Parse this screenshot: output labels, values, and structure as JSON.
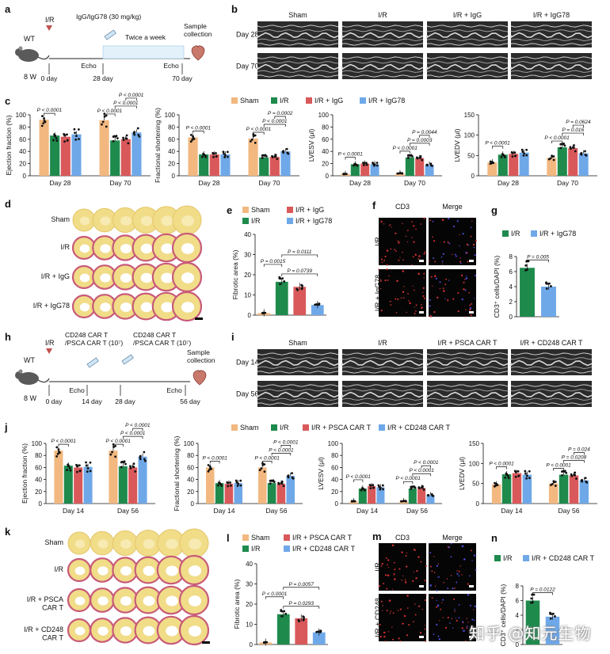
{
  "panels": {
    "a": {
      "label": "a",
      "wt": "WT",
      "age": "8 W",
      "ir": "I/R",
      "drug": "IgG/IgG78 (30 mg/kg)",
      "freq": "Twice a week",
      "sample": "Sample\ncollection",
      "echo": "Echo",
      "days": [
        "0 day",
        "28 day",
        "70 day"
      ]
    },
    "b": {
      "label": "b",
      "cols": [
        "Sham",
        "I/R",
        "I/R + IgG",
        "I/R + IgG78"
      ],
      "rows": [
        "Day 28",
        "Day 70"
      ]
    },
    "c": {
      "label": "c"
    },
    "d": {
      "label": "d",
      "rows": [
        "Sham",
        "I/R",
        "I/R + IgG",
        "I/R + IgG78"
      ]
    },
    "e": {
      "label": "e"
    },
    "f": {
      "label": "f",
      "cols": [
        "CD3",
        "Merge"
      ],
      "rows": [
        "I/R",
        "I/R + IgG78"
      ]
    },
    "g": {
      "label": "g"
    },
    "h": {
      "label": "h",
      "wt": "WT",
      "age": "8 W",
      "ir": "I/R",
      "treat1": "CD248 CAR T\n/PSCA CAR T (10⁷)",
      "treat2": "CD248 CAR T\n/PSCA CAR T (10⁷)",
      "sample": "Sample\ncollection",
      "echo": "Echo",
      "days": [
        "0 day",
        "14 day",
        "28 day",
        "56 day"
      ]
    },
    "i": {
      "label": "i",
      "cols": [
        "Sham",
        "I/R",
        "I/R + PSCA CAR T",
        "I/R + CD248 CAR T"
      ],
      "rows": [
        "Day 14",
        "Day 56"
      ]
    },
    "j": {
      "label": "j"
    },
    "k": {
      "label": "k",
      "rows": [
        "Sham",
        "I/R",
        "I/R + PSCA\nCAR T",
        "I/R + CD248\nCAR T"
      ]
    },
    "l": {
      "label": "l"
    },
    "m": {
      "label": "m",
      "cols": [
        "CD3",
        "Merge"
      ],
      "rows": [
        "I/R",
        "I/R + CD248\nCAR T"
      ]
    },
    "n": {
      "label": "n"
    }
  },
  "colors": {
    "sham": "#F2B880",
    "ir": "#1E8A4C",
    "igg": "#D9595B",
    "igg78": "#6FA8E8"
  },
  "watermark": "知乎 @知元生物",
  "chart_data": [
    {
      "id": "c1",
      "type": "bar",
      "ylabel": "Ejection fraction (%)",
      "ylim": [
        0,
        100
      ],
      "yticks": [
        0,
        20,
        40,
        60,
        80,
        100
      ],
      "categories": [
        "Day 28",
        "Day 70"
      ],
      "series": [
        {
          "name": "Sham",
          "values": [
            92,
            91
          ]
        },
        {
          "name": "I/R",
          "values": [
            66,
            58
          ]
        },
        {
          "name": "I/R + IgG",
          "values": [
            64,
            60
          ]
        },
        {
          "name": "I/R + IgG78",
          "values": [
            68,
            71
          ]
        }
      ],
      "pvalues": [
        "P < 0.0001",
        "P < 0.0001",
        "P < 0.0001",
        "P < 0.0001"
      ]
    },
    {
      "id": "c2",
      "type": "bar",
      "ylabel": "Fractional shortening (%)",
      "ylim": [
        0,
        100
      ],
      "yticks": [
        0,
        20,
        40,
        60,
        80,
        100
      ],
      "categories": [
        "Day 28",
        "Day 70"
      ],
      "series": [
        {
          "name": "Sham",
          "values": [
            63,
            61
          ]
        },
        {
          "name": "I/R",
          "values": [
            35,
            30
          ]
        },
        {
          "name": "I/R + IgG",
          "values": [
            35,
            31
          ]
        },
        {
          "name": "I/R + IgG78",
          "values": [
            35,
            40
          ]
        }
      ],
      "pvalues": [
        "P < 0.0001",
        "P < 0.0001",
        "P < 0.0001",
        "P = 0.0002"
      ]
    },
    {
      "id": "c3",
      "type": "bar",
      "ylabel": "LVESV (μl)",
      "ylim": [
        0,
        100
      ],
      "yticks": [
        0,
        20,
        40,
        60,
        80,
        100
      ],
      "categories": [
        "Day 28",
        "Day 70"
      ],
      "series": [
        {
          "name": "Sham",
          "values": [
            3,
            4
          ]
        },
        {
          "name": "I/R",
          "values": [
            19,
            30
          ]
        },
        {
          "name": "I/R + IgG",
          "values": [
            20,
            29
          ]
        },
        {
          "name": "I/R + IgG78",
          "values": [
            19,
            18
          ]
        }
      ],
      "pvalues": [
        "P < 0.0001",
        "P < 0.0001",
        "P = 0.0003",
        "P = 0.0044"
      ]
    },
    {
      "id": "c4",
      "type": "bar",
      "ylabel": "LVEDV (μl)",
      "ylim": [
        0,
        150
      ],
      "yticks": [
        0,
        50,
        100,
        150
      ],
      "categories": [
        "Day 28",
        "Day 70"
      ],
      "series": [
        {
          "name": "Sham",
          "values": [
            33,
            44
          ]
        },
        {
          "name": "I/R",
          "values": [
            52,
            70
          ]
        },
        {
          "name": "I/R + IgG",
          "values": [
            54,
            68
          ]
        },
        {
          "name": "I/R + IgG78",
          "values": [
            57,
            55
          ]
        }
      ],
      "pvalues": [
        "P < 0.0001",
        "P < 0.0001",
        "P = 0.016",
        "P = 0.0624"
      ]
    },
    {
      "id": "e",
      "type": "bar",
      "ylabel": "Fibrotic area (%)",
      "ylim": [
        0,
        40
      ],
      "yticks": [
        0,
        10,
        20,
        30,
        40
      ],
      "categories": [
        "Sham",
        "I/R",
        "I/R + IgG",
        "I/R + IgG78"
      ],
      "values": [
        1,
        16.5,
        14,
        5
      ],
      "pvalues": [
        "P = 0.0111",
        "P = 0.0015",
        "P = 0.0739"
      ]
    },
    {
      "id": "g",
      "type": "bar",
      "ylabel": "CD3⁺ cells/DAPI (%)",
      "ylim": [
        0,
        8
      ],
      "yticks": [
        0,
        2,
        4,
        6,
        8
      ],
      "categories": [
        "I/R",
        "I/R + IgG78"
      ],
      "values": [
        6.5,
        4
      ],
      "pvalues": [
        "P = 0.005"
      ]
    },
    {
      "id": "j1",
      "type": "bar",
      "ylabel": "Ejection fraction (%)",
      "ylim": [
        0,
        100
      ],
      "yticks": [
        0,
        20,
        40,
        60,
        80,
        100
      ],
      "categories": [
        "Day 14",
        "Day 56"
      ],
      "series": [
        {
          "name": "Sham",
          "values": [
            88,
            88
          ]
        },
        {
          "name": "I/R",
          "values": [
            63,
            62
          ]
        },
        {
          "name": "I/R + PSCA CAR T",
          "values": [
            60,
            60
          ]
        },
        {
          "name": "I/R + CD248 CAR T",
          "values": [
            61,
            78
          ]
        }
      ],
      "pvalues": [
        "P < 0.0001",
        "P < 0.0001",
        "P < 0.0001",
        "P < 0.0001"
      ]
    },
    {
      "id": "j2",
      "type": "bar",
      "ylabel": "Fractional shortening (%)",
      "ylim": [
        0,
        100
      ],
      "yticks": [
        0,
        20,
        40,
        60,
        80,
        100
      ],
      "categories": [
        "Day 14",
        "Day 56"
      ],
      "series": [
        {
          "name": "Sham",
          "values": [
            60,
            60
          ]
        },
        {
          "name": "I/R",
          "values": [
            34,
            34
          ]
        },
        {
          "name": "I/R + PSCA CAR T",
          "values": [
            33,
            33
          ]
        },
        {
          "name": "I/R + CD248 CAR T",
          "values": [
            34,
            46
          ]
        }
      ],
      "pvalues": [
        "P < 0.0001",
        "P < 0.0001",
        "P < 0.0001",
        "P < 0.0001"
      ]
    },
    {
      "id": "j3",
      "type": "bar",
      "ylabel": "LVESV (μl)",
      "ylim": [
        0,
        100
      ],
      "yticks": [
        0,
        20,
        40,
        60,
        80,
        100
      ],
      "categories": [
        "Day 14",
        "Day 56"
      ],
      "series": [
        {
          "name": "Sham",
          "values": [
            4,
            4
          ]
        },
        {
          "name": "I/R",
          "values": [
            25,
            25
          ]
        },
        {
          "name": "I/R + PSCA CAR T",
          "values": [
            29,
            26
          ]
        },
        {
          "name": "I/R + CD248 CAR T",
          "values": [
            27,
            14
          ]
        }
      ],
      "pvalues": [
        "P < 0.0001",
        "P < 0.0001",
        "P < 0.0001",
        "P < 0.0001"
      ]
    },
    {
      "id": "j4",
      "type": "bar",
      "ylabel": "LVEDV (μl)",
      "ylim": [
        0,
        150
      ],
      "yticks": [
        0,
        50,
        100,
        150
      ],
      "categories": [
        "Day 14",
        "Day 56"
      ],
      "series": [
        {
          "name": "Sham",
          "values": [
            48,
            50
          ]
        },
        {
          "name": "I/R",
          "values": [
            73,
            72
          ]
        },
        {
          "name": "I/R + PSCA CAR T",
          "values": [
            76,
            70
          ]
        },
        {
          "name": "I/R + CD248 CAR T",
          "values": [
            72,
            58
          ]
        }
      ],
      "pvalues": [
        "P < 0.0001",
        "P < 0.0001",
        "P = 0.0208",
        "P = 0.024"
      ]
    },
    {
      "id": "l",
      "type": "bar",
      "ylabel": "Fibrotic area (%)",
      "ylim": [
        0,
        40
      ],
      "yticks": [
        0,
        10,
        20,
        30,
        40
      ],
      "categories": [
        "Sham",
        "I/R",
        "I/R + PSCA CAR T",
        "I/R + CD248 CAR T"
      ],
      "values": [
        1,
        15,
        13,
        6
      ],
      "pvalues": [
        "P < 0.0001",
        "P = 0.0057",
        "P = 0.0293"
      ]
    },
    {
      "id": "n",
      "type": "bar",
      "ylabel": "CD3⁺ cells/DAPI (%)",
      "ylim": [
        0,
        8
      ],
      "yticks": [
        0,
        2,
        4,
        6,
        8
      ],
      "categories": [
        "I/R",
        "I/R + CD248 CAR T"
      ],
      "values": [
        6,
        3.8
      ],
      "pvalues": [
        "P = 0.0122"
      ]
    }
  ]
}
